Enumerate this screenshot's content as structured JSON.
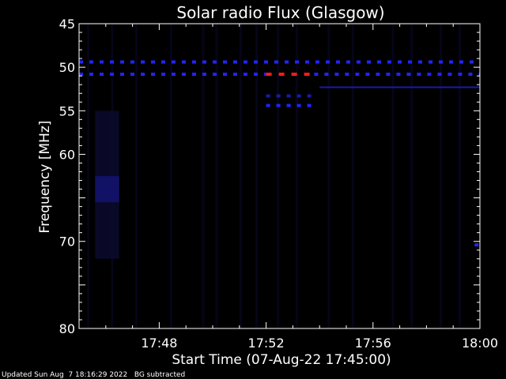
{
  "chart_data": {
    "type": "heatmap",
    "title": "Solar radio Flux (Glasgow)",
    "xlabel": "Start Time (07-Aug-22 17:45:00)",
    "ylabel": "Frequency [MHz]",
    "x_range_minutes": [
      0,
      15
    ],
    "ylim": [
      45,
      80
    ],
    "y_reversed": true,
    "x_tick_labels": [
      "17:48",
      "17:52",
      "17:56",
      "18:00"
    ],
    "x_ticks_minutes": [
      3,
      7,
      11,
      15
    ],
    "y_ticks": [
      45,
      50,
      55,
      60,
      65,
      70,
      75,
      80
    ],
    "y_tick_labels": [
      "45",
      "50",
      "55",
      "60",
      "",
      "70",
      "",
      "80"
    ],
    "colors": {
      "background": "#000000",
      "low": "#0a0a2e",
      "medium": "#1a1aa6",
      "high": "#2323ff",
      "peak": "#ff1a1a",
      "axis": "#ffffff"
    },
    "features": [
      {
        "kind": "dashed-line",
        "freq": 49.4,
        "t_start": 0,
        "t_end": 15,
        "level": "high"
      },
      {
        "kind": "dashed-line",
        "freq": 50.8,
        "t_start": 0,
        "t_end": 7,
        "level": "high"
      },
      {
        "kind": "dashed-line",
        "freq": 50.8,
        "t_start": 7,
        "t_end": 8.8,
        "level": "peak"
      },
      {
        "kind": "dashed-line",
        "freq": 50.8,
        "t_start": 8.8,
        "t_end": 15,
        "level": "high"
      },
      {
        "kind": "dashed-line",
        "freq": 53.3,
        "t_start": 7,
        "t_end": 8.8,
        "level": "medium"
      },
      {
        "kind": "dashed-line",
        "freq": 54.4,
        "t_start": 7,
        "t_end": 8.8,
        "level": "high"
      },
      {
        "kind": "solid-line",
        "freq": 52.3,
        "t_start": 9,
        "t_end": 15,
        "level": "medium"
      },
      {
        "kind": "blob",
        "freq_start": 55,
        "freq_end": 72,
        "t_start": 0.6,
        "t_end": 1.5,
        "level": "low"
      },
      {
        "kind": "blob",
        "freq_start": 62.5,
        "freq_end": 65.5,
        "t_start": 0.6,
        "t_end": 1.5,
        "level": "medium"
      },
      {
        "kind": "dashed-line",
        "freq": 70.4,
        "t_start": 14.8,
        "t_end": 15,
        "level": "high"
      }
    ]
  },
  "footer": {
    "updated": "Updated Sun Aug  7 18:16:29 2022",
    "note": "BG subtracted"
  }
}
